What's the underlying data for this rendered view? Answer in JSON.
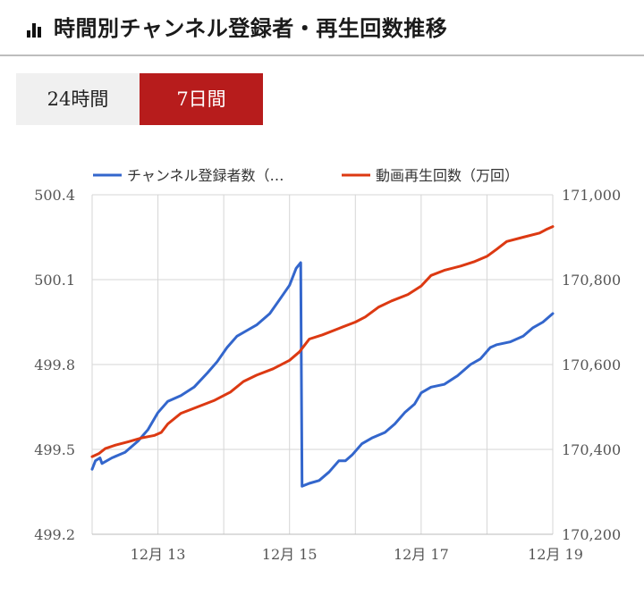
{
  "header": {
    "title": "時間別チャンネル登録者・再生回数推移",
    "icon": "bar-chart-icon"
  },
  "tabs": [
    {
      "label": "24時間",
      "active": false
    },
    {
      "label": "7日間",
      "active": true
    }
  ],
  "chart_data": {
    "type": "line",
    "title": "",
    "legend_position": "top",
    "grid": true,
    "x_axis": {
      "min": 12.0,
      "max": 19.0,
      "ticks": [
        {
          "value": 13,
          "label": "12月 13"
        },
        {
          "value": 15,
          "label": "12月 15"
        },
        {
          "value": 17,
          "label": "12月 17"
        },
        {
          "value": 19,
          "label": "12月 19"
        }
      ],
      "gridlines": [
        13,
        14,
        15,
        16,
        17,
        18
      ]
    },
    "y_left": {
      "min": 499.2,
      "max": 500.4,
      "ticks": [
        {
          "value": 499.2,
          "label": "499.2"
        },
        {
          "value": 499.5,
          "label": "499.5"
        },
        {
          "value": 499.8,
          "label": "499.8"
        },
        {
          "value": 500.1,
          "label": "500.1"
        },
        {
          "value": 500.4,
          "label": "500.4"
        }
      ]
    },
    "y_right": {
      "min": 170200,
      "max": 171000,
      "ticks": [
        {
          "value": 170200,
          "label": "170,200"
        },
        {
          "value": 170400,
          "label": "170,400"
        },
        {
          "value": 170600,
          "label": "170,600"
        },
        {
          "value": 170800,
          "label": "170,800"
        },
        {
          "value": 171000,
          "label": "171,000"
        }
      ]
    },
    "series": [
      {
        "name": "チャンネル登録者数（…",
        "axis": "left",
        "color": "#3366cc",
        "points": [
          [
            12.0,
            499.43
          ],
          [
            12.05,
            499.46
          ],
          [
            12.12,
            499.47
          ],
          [
            12.15,
            499.45
          ],
          [
            12.3,
            499.47
          ],
          [
            12.5,
            499.49
          ],
          [
            12.7,
            499.53
          ],
          [
            12.85,
            499.57
          ],
          [
            13.0,
            499.63
          ],
          [
            13.15,
            499.67
          ],
          [
            13.35,
            499.69
          ],
          [
            13.55,
            499.72
          ],
          [
            13.75,
            499.77
          ],
          [
            13.9,
            499.81
          ],
          [
            14.05,
            499.86
          ],
          [
            14.2,
            499.9
          ],
          [
            14.35,
            499.92
          ],
          [
            14.5,
            499.94
          ],
          [
            14.7,
            499.98
          ],
          [
            14.85,
            500.03
          ],
          [
            15.0,
            500.08
          ],
          [
            15.1,
            500.14
          ],
          [
            15.17,
            500.16
          ],
          [
            15.19,
            499.37
          ],
          [
            15.3,
            499.38
          ],
          [
            15.45,
            499.39
          ],
          [
            15.6,
            499.42
          ],
          [
            15.75,
            499.46
          ],
          [
            15.85,
            499.46
          ],
          [
            15.95,
            499.48
          ],
          [
            16.1,
            499.52
          ],
          [
            16.25,
            499.54
          ],
          [
            16.45,
            499.56
          ],
          [
            16.6,
            499.59
          ],
          [
            16.75,
            499.63
          ],
          [
            16.9,
            499.66
          ],
          [
            17.0,
            499.7
          ],
          [
            17.15,
            499.72
          ],
          [
            17.35,
            499.73
          ],
          [
            17.55,
            499.76
          ],
          [
            17.75,
            499.8
          ],
          [
            17.9,
            499.82
          ],
          [
            18.05,
            499.86
          ],
          [
            18.15,
            499.87
          ],
          [
            18.35,
            499.88
          ],
          [
            18.55,
            499.9
          ],
          [
            18.7,
            499.93
          ],
          [
            18.85,
            499.95
          ],
          [
            19.0,
            499.98
          ]
        ]
      },
      {
        "name": "動画再生回数（万回）",
        "axis": "right",
        "color": "#dc3912",
        "points": [
          [
            12.0,
            170383
          ],
          [
            12.1,
            170390
          ],
          [
            12.2,
            170402
          ],
          [
            12.35,
            170410
          ],
          [
            12.55,
            170418
          ],
          [
            12.75,
            170427
          ],
          [
            12.95,
            170433
          ],
          [
            13.05,
            170440
          ],
          [
            13.15,
            170460
          ],
          [
            13.35,
            170485
          ],
          [
            13.6,
            170500
          ],
          [
            13.85,
            170515
          ],
          [
            14.1,
            170535
          ],
          [
            14.3,
            170560
          ],
          [
            14.5,
            170575
          ],
          [
            14.75,
            170590
          ],
          [
            15.0,
            170610
          ],
          [
            15.15,
            170630
          ],
          [
            15.3,
            170660
          ],
          [
            15.5,
            170670
          ],
          [
            15.75,
            170685
          ],
          [
            16.0,
            170700
          ],
          [
            16.15,
            170712
          ],
          [
            16.35,
            170735
          ],
          [
            16.55,
            170750
          ],
          [
            16.8,
            170765
          ],
          [
            17.0,
            170785
          ],
          [
            17.15,
            170810
          ],
          [
            17.35,
            170822
          ],
          [
            17.6,
            170832
          ],
          [
            17.8,
            170842
          ],
          [
            18.0,
            170855
          ],
          [
            18.15,
            170872
          ],
          [
            18.3,
            170890
          ],
          [
            18.55,
            170900
          ],
          [
            18.8,
            170910
          ],
          [
            18.9,
            170918
          ],
          [
            19.0,
            170925
          ]
        ]
      }
    ]
  }
}
